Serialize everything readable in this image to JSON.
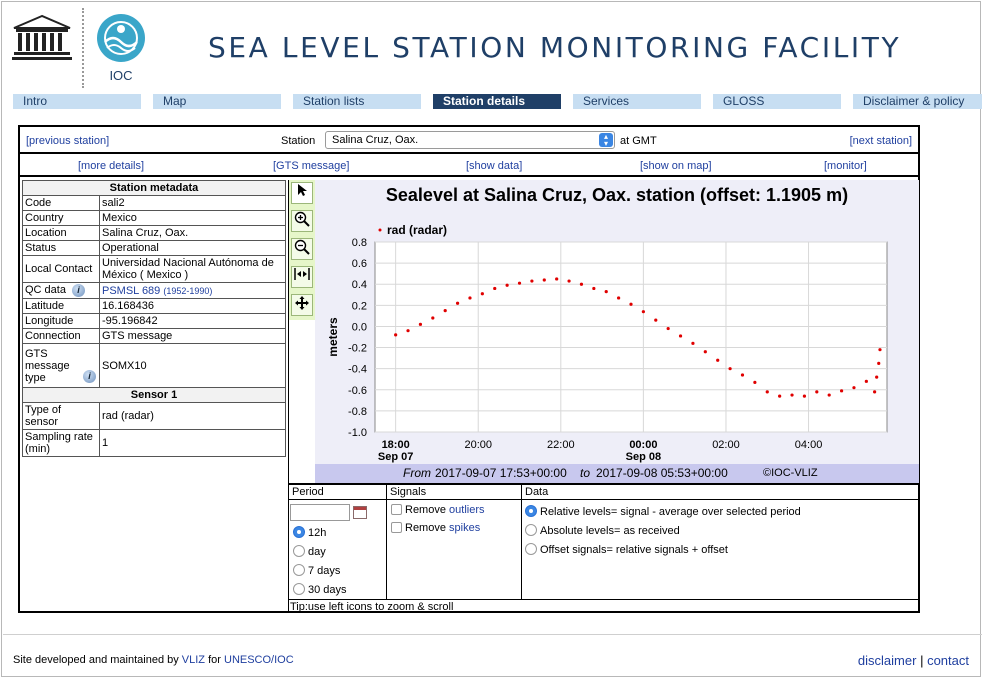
{
  "header": {
    "unesco_logo_text": "UNESCO",
    "ioc_logo_text": "IOC",
    "title": "SEA LEVEL STATION MONITORING FACILITY"
  },
  "nav": {
    "items": [
      {
        "label": "Intro"
      },
      {
        "label": "Map"
      },
      {
        "label": "Station lists"
      },
      {
        "label": "Station details"
      },
      {
        "label": "Services"
      },
      {
        "label": "GLOSS"
      },
      {
        "label": "Disclaimer & policy"
      }
    ]
  },
  "station_bar": {
    "prev": "[previous station]",
    "label": "Station",
    "selected": "Salina Cruz, Oax.",
    "gmt": "at GMT",
    "next": "[next station]"
  },
  "links": {
    "more_details": "[more details]",
    "gts_message": "[GTS message]",
    "show_data": "[show data]",
    "show_on_map": "[show on map]",
    "monitor": "[monitor]"
  },
  "metadata": {
    "heading": "Station metadata",
    "code_k": "Code",
    "code_v": "sali2",
    "country_k": "Country",
    "country_v": "Mexico",
    "location_k": "Location",
    "location_v": "Salina Cruz, Oax.",
    "status_k": "Status",
    "status_v": "Operational",
    "contact_k": "Local Contact",
    "contact_v": "Universidad Nacional Autónoma de México ( Mexico )",
    "qc_k": "QC data",
    "qc_link": "PSMSL 689",
    "qc_years": "(1952-1990)",
    "lat_k": "Latitude",
    "lat_v": "16.168436",
    "lon_k": "Longitude",
    "lon_v": "-95.196842",
    "conn_k": "Connection",
    "conn_v": "GTS message",
    "gts_k": "GTS message type",
    "gts_v": "SOMX10",
    "sensor_heading": "Sensor 1",
    "type_k": "Type of sensor",
    "type_v": "rad (radar)",
    "rate_k": "Sampling rate (min)",
    "rate_v": "1"
  },
  "graph": {
    "caption_from": "From",
    "caption_start": "2017-09-07 17:53+00:00",
    "caption_to": "to",
    "caption_end": "2017-09-08 05:53+00:00",
    "credit": "©IOC-VLIZ"
  },
  "chart_data": {
    "type": "scatter",
    "title": "Sealevel at Salina Cruz, Oax. station (offset: 1.1905 m)",
    "ylabel": "meters",
    "xlabel": "",
    "ylim": [
      -1.0,
      0.8
    ],
    "xlim_hours": [
      17.5,
      29.9
    ],
    "yticks": [
      "0.8",
      "0.6",
      "0.4",
      "0.2",
      "0.0",
      "-0.2",
      "-0.4",
      "-0.6",
      "-0.8",
      "-1.0"
    ],
    "xticks": [
      {
        "label": "18:00",
        "sub": "Sep 07",
        "hour": 18,
        "bold": true
      },
      {
        "label": "20:00",
        "sub": "",
        "hour": 20,
        "bold": false
      },
      {
        "label": "22:00",
        "sub": "",
        "hour": 22,
        "bold": false
      },
      {
        "label": "00:00",
        "sub": "Sep 08",
        "hour": 24,
        "bold": true
      },
      {
        "label": "02:00",
        "sub": "",
        "hour": 26,
        "bold": false
      },
      {
        "label": "04:00",
        "sub": "",
        "hour": 28,
        "bold": false
      }
    ],
    "grid": true,
    "legend": "top-left",
    "series": [
      {
        "name": "rad (radar)",
        "color": "#e00000",
        "x_hours": [
          18.0,
          18.3,
          18.6,
          18.9,
          19.2,
          19.5,
          19.8,
          20.1,
          20.4,
          20.7,
          21.0,
          21.3,
          21.6,
          21.9,
          22.2,
          22.5,
          22.8,
          23.1,
          23.4,
          23.7,
          24.0,
          24.3,
          24.6,
          24.9,
          25.2,
          25.5,
          25.8,
          26.1,
          26.4,
          26.7,
          27.0,
          27.3,
          27.6,
          27.9,
          28.2,
          28.5,
          28.8,
          29.1,
          29.4,
          29.6,
          29.65,
          29.7,
          29.73
        ],
        "values": [
          -0.08,
          -0.04,
          0.02,
          0.08,
          0.15,
          0.22,
          0.27,
          0.31,
          0.36,
          0.39,
          0.41,
          0.43,
          0.44,
          0.45,
          0.43,
          0.4,
          0.36,
          0.33,
          0.27,
          0.21,
          0.14,
          0.06,
          -0.02,
          -0.09,
          -0.16,
          -0.24,
          -0.32,
          -0.4,
          -0.46,
          -0.53,
          -0.62,
          -0.66,
          -0.65,
          -0.66,
          -0.62,
          -0.65,
          -0.61,
          -0.58,
          -0.52,
          -0.62,
          -0.48,
          -0.35,
          -0.22
        ]
      }
    ]
  },
  "controls": {
    "period_head": "Period",
    "signals_head": "Signals",
    "data_head": "Data",
    "p_12h": "12h",
    "p_day": "day",
    "p_7": "7 days",
    "p_30": "30 days",
    "remove": "Remove",
    "outliers": "outliers",
    "spikes": "spikes",
    "d_relative": "Relative levels= signal - average over selected period",
    "d_absolute": "Absolute levels= as received",
    "d_offset": "Offset signals= relative signals + offset",
    "tip": "Tip:use left icons to zoom & scroll"
  },
  "footer": {
    "text": "Site developed and maintained by",
    "vliz": "VLIZ",
    "for": "for",
    "unesco_ioc": "UNESCO/IOC",
    "disclaimer": "disclaimer",
    "sep": "|",
    "contact": "contact"
  }
}
